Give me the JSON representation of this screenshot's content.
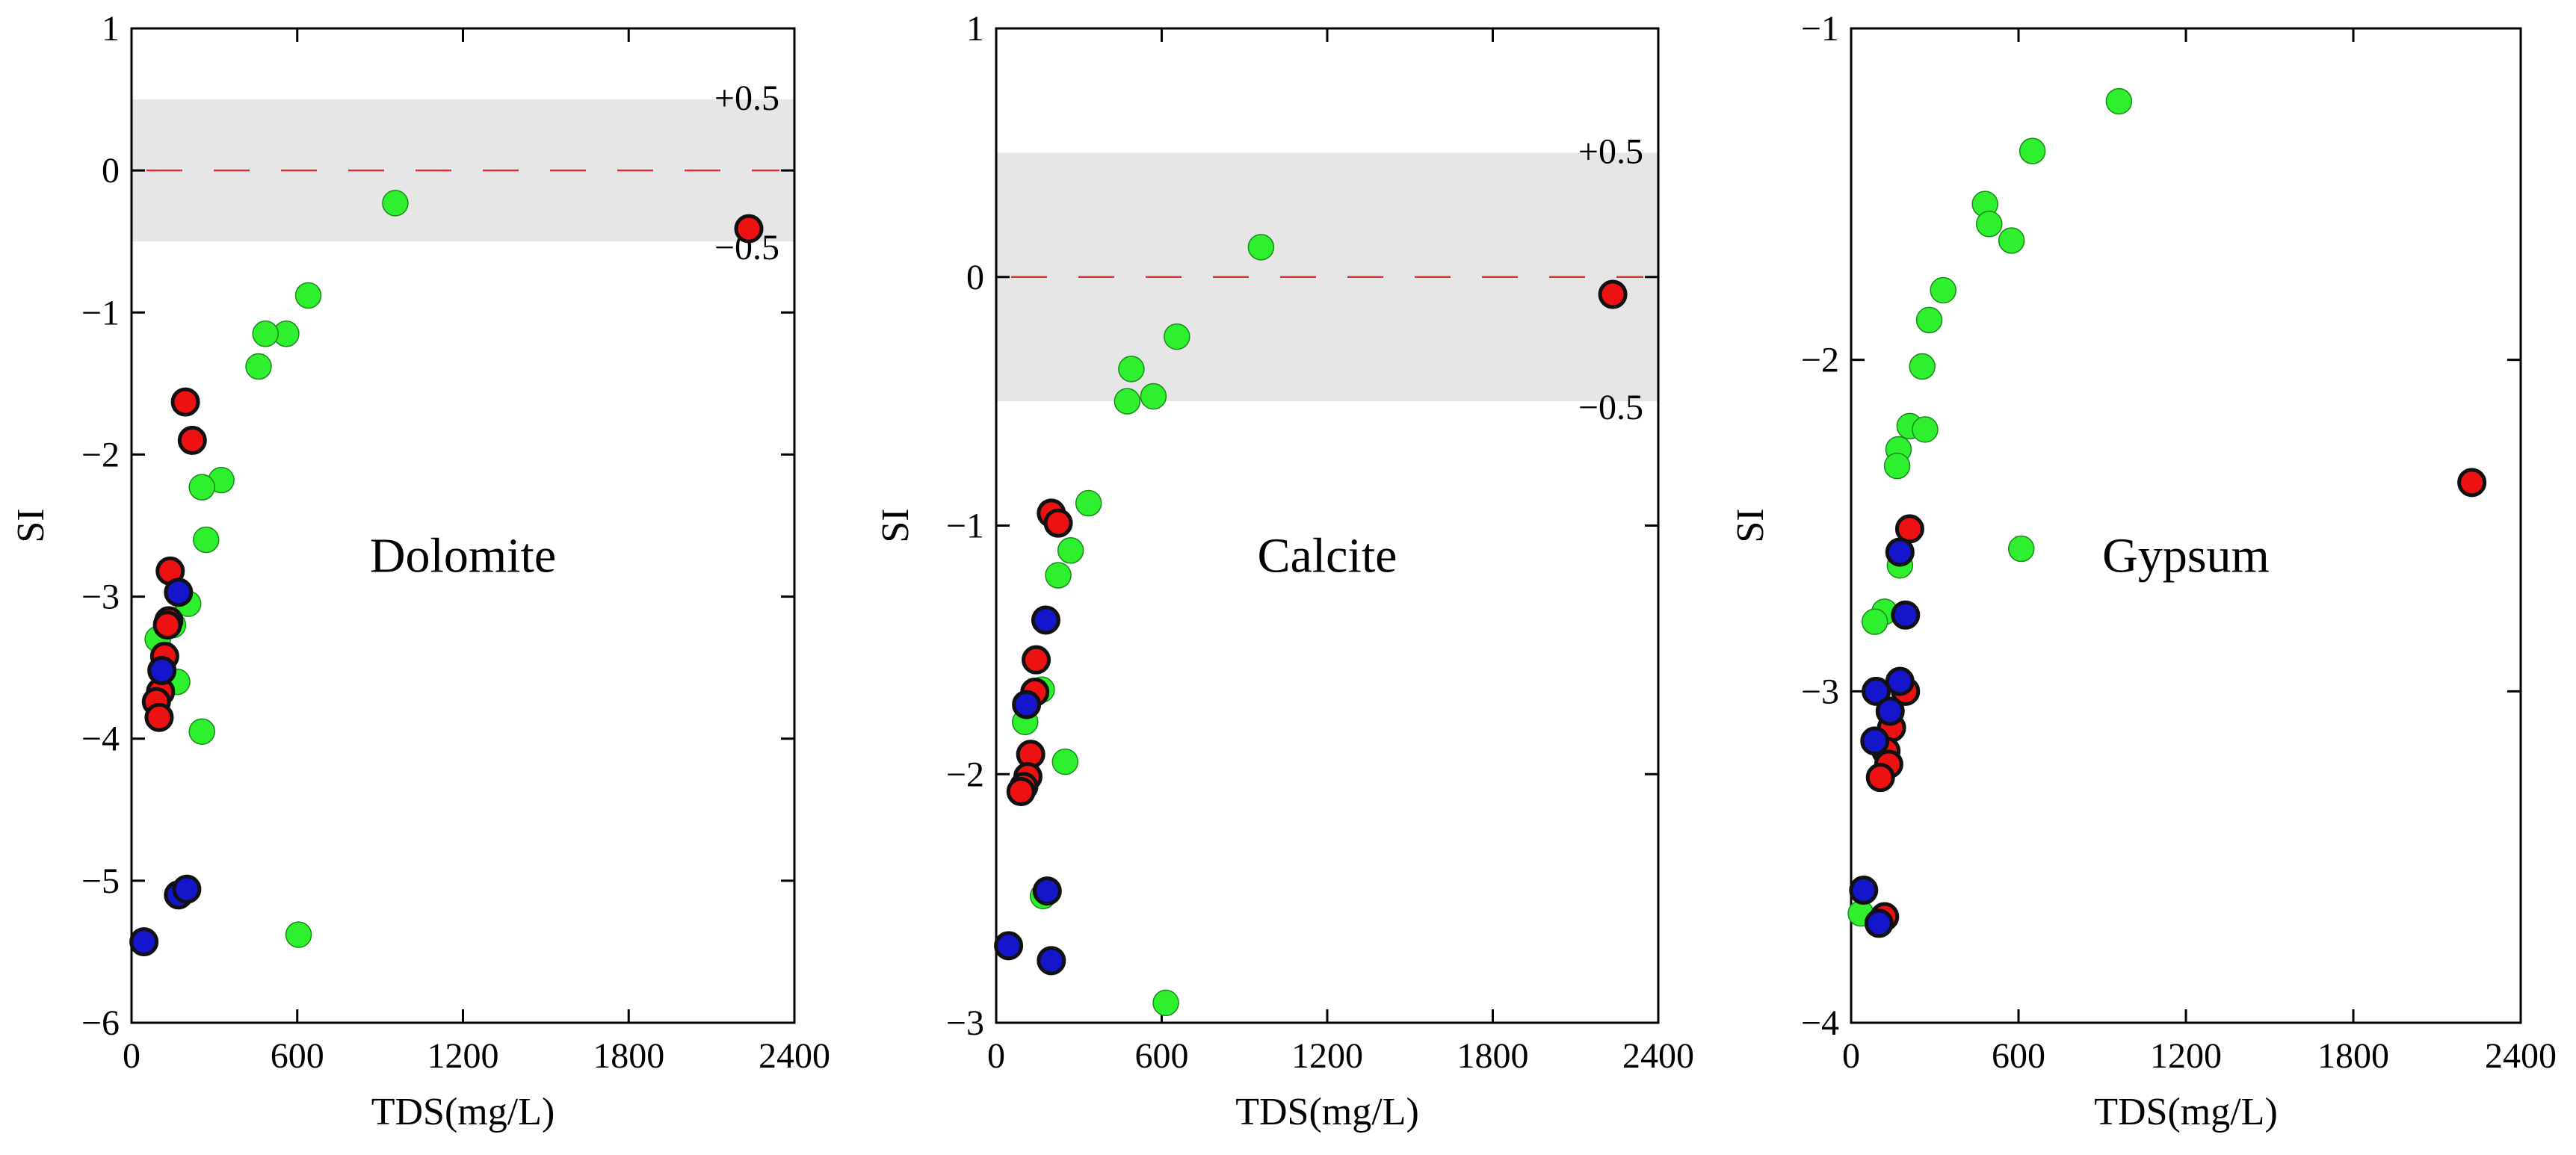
{
  "figure": {
    "colors": {
      "green": "#2ef02e",
      "red": "#ee1111",
      "blue": "#1515cc",
      "band": "#e6e6e6",
      "ref_line": "#e03030",
      "point_edge": "#111111"
    }
  },
  "chart_data": [
    {
      "type": "scatter",
      "title": "Dolomite",
      "xlabel": "TDS(mg/L)",
      "ylabel": "SI",
      "xlim": [
        0,
        2400
      ],
      "ylim": [
        -6,
        1
      ],
      "xticks": [
        0,
        600,
        1200,
        1800,
        2400
      ],
      "xtick_labels": [
        "0",
        "600",
        "1200",
        "1800",
        "2400"
      ],
      "yticks": [
        -6,
        -5,
        -4,
        -3,
        -2,
        -1,
        0,
        1
      ],
      "ytick_labels": [
        "−6",
        "−5",
        "−4",
        "−3",
        "−2",
        "−1",
        "0",
        "1"
      ],
      "band": {
        "low": -0.5,
        "high": 0.5,
        "label_high": "+0.5",
        "label_low": "−0.5"
      },
      "reference_line": 0,
      "series": [
        {
          "name": "green",
          "color": "green",
          "points": [
            [
              955,
              -0.23
            ],
            [
              640,
              -0.88
            ],
            [
              560,
              -1.15
            ],
            [
              485,
              -1.15
            ],
            [
              460,
              -1.38
            ],
            [
              325,
              -2.18
            ],
            [
              255,
              -2.23
            ],
            [
              270,
              -2.6
            ],
            [
              205,
              -3.05
            ],
            [
              150,
              -3.2
            ],
            [
              95,
              -3.3
            ],
            [
              165,
              -3.6
            ],
            [
              255,
              -3.95
            ],
            [
              605,
              -5.38
            ]
          ]
        },
        {
          "name": "red",
          "color": "red",
          "points": [
            [
              2235,
              -0.41
            ],
            [
              195,
              -1.63
            ],
            [
              220,
              -1.9
            ],
            [
              140,
              -2.82
            ],
            [
              135,
              -3.17
            ],
            [
              130,
              -3.2
            ],
            [
              120,
              -3.42
            ],
            [
              105,
              -3.67
            ],
            [
              90,
              -3.74
            ],
            [
              100,
              -3.85
            ]
          ]
        },
        {
          "name": "blue",
          "color": "blue",
          "points": [
            [
              170,
              -2.97
            ],
            [
              110,
              -3.52
            ],
            [
              170,
              -5.1
            ],
            [
              200,
              -5.06
            ],
            [
              45,
              -5.43
            ]
          ]
        }
      ]
    },
    {
      "type": "scatter",
      "title": "Calcite",
      "xlabel": "TDS(mg/L)",
      "ylabel": "SI",
      "xlim": [
        0,
        2400
      ],
      "ylim": [
        -3,
        1
      ],
      "xticks": [
        0,
        600,
        1200,
        1800,
        2400
      ],
      "xtick_labels": [
        "0",
        "600",
        "1200",
        "1800",
        "2400"
      ],
      "yticks": [
        -3,
        -2,
        -1,
        0,
        1
      ],
      "ytick_labels": [
        "−3",
        "−2",
        "−1",
        "0",
        "1"
      ],
      "band": {
        "low": -0.5,
        "high": 0.5,
        "label_high": "+0.5",
        "label_low": "−0.5"
      },
      "reference_line": 0,
      "series": [
        {
          "name": "green",
          "color": "green",
          "points": [
            [
              960,
              0.12
            ],
            [
              655,
              -0.24
            ],
            [
              490,
              -0.37
            ],
            [
              570,
              -0.48
            ],
            [
              475,
              -0.5
            ],
            [
              335,
              -0.91
            ],
            [
              270,
              -1.1
            ],
            [
              225,
              -1.2
            ],
            [
              165,
              -1.66
            ],
            [
              105,
              -1.79
            ],
            [
              250,
              -1.95
            ],
            [
              170,
              -2.49
            ],
            [
              615,
              -2.92
            ]
          ]
        },
        {
          "name": "red",
          "color": "red",
          "points": [
            [
              2235,
              -0.07
            ],
            [
              200,
              -0.95
            ],
            [
              225,
              -0.99
            ],
            [
              145,
              -1.54
            ],
            [
              140,
              -1.67
            ],
            [
              125,
              -1.92
            ],
            [
              115,
              -2.01
            ],
            [
              100,
              -2.05
            ],
            [
              90,
              -2.07
            ]
          ]
        },
        {
          "name": "blue",
          "color": "blue",
          "points": [
            [
              180,
              -1.38
            ],
            [
              110,
              -1.72
            ],
            [
              185,
              -2.47
            ],
            [
              45,
              -2.69
            ],
            [
              200,
              -2.75
            ]
          ]
        }
      ]
    },
    {
      "type": "scatter",
      "title": "Gypsum",
      "xlabel": "TDS(mg/L)",
      "ylabel": "SI",
      "xlim": [
        0,
        2400
      ],
      "ylim": [
        -4,
        -1
      ],
      "xticks": [
        0,
        600,
        1200,
        1800,
        2400
      ],
      "xtick_labels": [
        "0",
        "600",
        "1200",
        "1800",
        "2400"
      ],
      "yticks": [
        -4,
        -3,
        -2,
        -1
      ],
      "ytick_labels": [
        "−4",
        "−3",
        "−2",
        "−1"
      ],
      "band": null,
      "reference_line": null,
      "series": [
        {
          "name": "green",
          "color": "green",
          "points": [
            [
              960,
              -1.22
            ],
            [
              650,
              -1.37
            ],
            [
              480,
              -1.53
            ],
            [
              495,
              -1.59
            ],
            [
              575,
              -1.64
            ],
            [
              330,
              -1.79
            ],
            [
              280,
              -1.88
            ],
            [
              255,
              -2.02
            ],
            [
              210,
              -2.2
            ],
            [
              265,
              -2.21
            ],
            [
              170,
              -2.27
            ],
            [
              165,
              -2.32
            ],
            [
              610,
              -2.57
            ],
            [
              175,
              -2.62
            ],
            [
              120,
              -2.76
            ],
            [
              85,
              -2.79
            ],
            [
              35,
              -3.67
            ]
          ]
        },
        {
          "name": "red",
          "color": "red",
          "points": [
            [
              2225,
              -2.37
            ],
            [
              210,
              -2.51
            ],
            [
              195,
              -3.0
            ],
            [
              145,
              -3.11
            ],
            [
              125,
              -3.18
            ],
            [
              135,
              -3.22
            ],
            [
              105,
              -3.26
            ],
            [
              120,
              -3.68
            ]
          ]
        },
        {
          "name": "blue",
          "color": "blue",
          "points": [
            [
              175,
              -2.58
            ],
            [
              195,
              -2.77
            ],
            [
              175,
              -2.97
            ],
            [
              90,
              -3.0
            ],
            [
              140,
              -3.06
            ],
            [
              85,
              -3.15
            ],
            [
              100,
              -3.7
            ],
            [
              45,
              -3.6
            ]
          ]
        }
      ]
    }
  ]
}
